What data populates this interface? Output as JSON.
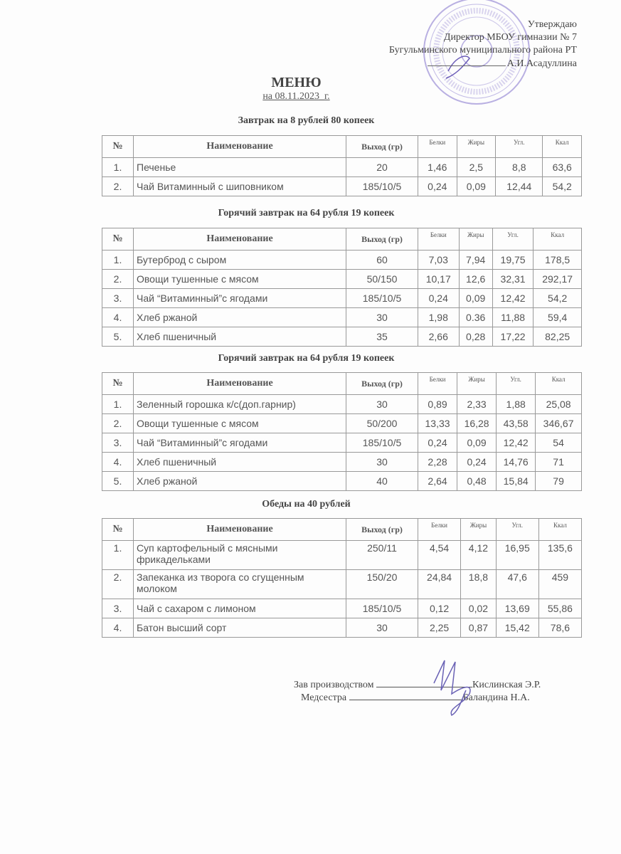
{
  "approval": {
    "line1": "Утверждаю",
    "line2": "Директор МБОУ гимназии № 7",
    "line3": "Бугульминского муниципального района РТ",
    "line4": "А.И.Асадуллина"
  },
  "title": "МЕНЮ",
  "date": "на 08.11.2023_г.",
  "stamp_color": "#8a7cc8",
  "headers": {
    "no": "№",
    "name": "Наименование",
    "yield": "Выход (гр)",
    "protein": "Белки",
    "fat": "Жиры",
    "carb": "Угл.",
    "kcal": "Ккал"
  },
  "sections": [
    {
      "title": "Завтрак на 8 рублей 80 копеек",
      "rows": [
        [
          "1.",
          "Печенье",
          "20",
          "1,46",
          "2,5",
          "8,8",
          "63,6"
        ],
        [
          "2.",
          "Чай Витаминный с шиповником",
          "185/10/5",
          "0,24",
          "0,09",
          "12,44",
          "54,2"
        ]
      ]
    },
    {
      "title": "Горячий завтрак на 64 рубля 19 копеек",
      "rows": [
        [
          "1.",
          "Бутерброд с сыром",
          "60",
          "7,03",
          "7,94",
          "19,75",
          "178,5"
        ],
        [
          "2.",
          "Овощи тушенные с мясом",
          "50/150",
          "10,17",
          "12,6",
          "32,31",
          "292,17"
        ],
        [
          "3.",
          "Чай “Витаминный”с ягодами",
          "185/10/5",
          "0,24",
          "0,09",
          "12,42",
          "54,2"
        ],
        [
          "4.",
          "Хлеб ржаной",
          "30",
          "1,98",
          "0.36",
          "11,88",
          "59,4"
        ],
        [
          "5.",
          "Хлеб пшеничный",
          "35",
          "2,66",
          "0,28",
          "17,22",
          "82,25"
        ]
      ]
    },
    {
      "title": "Горячий завтрак на 64 рубля 19 копеек",
      "rows": [
        [
          "1.",
          "Зеленный горошка к/с(доп.гарнир)",
          "30",
          "0,89",
          "2,33",
          "1,88",
          "25,08"
        ],
        [
          "2.",
          "Овощи тушенные с мясом",
          "50/200",
          "13,33",
          "16,28",
          "43,58",
          "346,67"
        ],
        [
          "3.",
          "Чай “Витаминный”с ягодами",
          "185/10/5",
          "0,24",
          "0,09",
          "12,42",
          "54"
        ],
        [
          "4.",
          "Хлеб пшеничный",
          "30",
          "2,28",
          "0,24",
          "14,76",
          "71"
        ],
        [
          "5.",
          "Хлеб ржаной",
          "40",
          "2,64",
          "0,48",
          "15,84",
          "79"
        ]
      ]
    },
    {
      "title": "Обеды на 40 рублей",
      "rows": [
        [
          "1.",
          "Суп картофельный  с  мясными фрикадельками",
          "250/11",
          "4,54",
          "4,12",
          "16,95",
          "135,6"
        ],
        [
          "2.",
          "Запеканка из творога со сгущенным молоком",
          "150/20",
          "24,84",
          "18,8",
          "47,6",
          "459"
        ],
        [
          "3.",
          "Чай с сахаром с лимоном",
          "185/10/5",
          "0,12",
          "0,02",
          "13,69",
          "55,86"
        ],
        [
          "4.",
          "Батон высший сорт",
          "30",
          "2,25",
          "0,87",
          "15,42",
          "78,6"
        ]
      ]
    }
  ],
  "signatures": [
    {
      "role": "Зав производством",
      "name": "Кислинская Э.Р."
    },
    {
      "role": "Медсестра",
      "name": "Баландина Н.А."
    }
  ]
}
